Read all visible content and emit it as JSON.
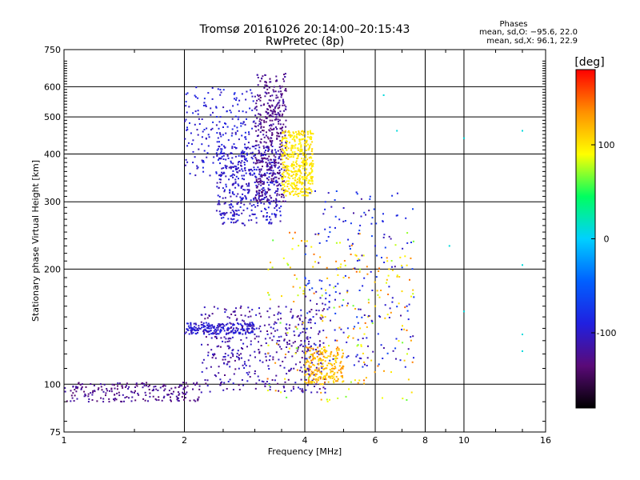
{
  "chart_data": {
    "type": "scatter",
    "title": "Tromsø 20161026 20:14:00–20:15:43",
    "subtitle": "RwPretec (8p)",
    "xlabel": "Frequency [MHz]",
    "ylabel": "Stationary phase Virtual Height [km]",
    "x_scale": "log",
    "y_scale": "log",
    "xlim": [
      1,
      16
    ],
    "ylim": [
      75,
      750
    ],
    "grid": true,
    "x_ticks": [
      1,
      2,
      4,
      6,
      8,
      10,
      16
    ],
    "x_tick_labels": [
      "1",
      "2",
      "4",
      "6",
      "8",
      "10",
      "16"
    ],
    "x_gridlines": [
      2,
      4,
      6,
      8,
      10
    ],
    "y_ticks": [
      75,
      100,
      200,
      300,
      400,
      500,
      600,
      750
    ],
    "y_tick_labels": [
      "75",
      "100",
      "200",
      "300",
      "400",
      "500",
      "600",
      "750"
    ],
    "y_gridlines": [
      100,
      200,
      300,
      400,
      500,
      600
    ],
    "colorbar": {
      "label": "[deg]",
      "range": [
        -180,
        180
      ],
      "ticks": [
        -100,
        0,
        100
      ],
      "tick_labels": [
        "-100",
        "0",
        "100"
      ],
      "colors": [
        "#000000",
        "#5a0a78",
        "#2020e0",
        "#0060ff",
        "#00d0ff",
        "#00ff60",
        "#ffff00",
        "#ff9000",
        "#ff0000"
      ]
    },
    "legend": {
      "title": "Phases",
      "lines": [
        "mean, sd,O: −95.6, 22.0",
        "mean, sd,X:  96.1, 22.9"
      ]
    },
    "series": [
      {
        "x_range": [
          1.0,
          2.2
        ],
        "y_range": [
          90,
          101
        ],
        "phase_range": [
          -140,
          -110
        ],
        "density": "medium",
        "points": [
          [
            1.05,
            92
          ],
          [
            1.15,
            93
          ],
          [
            1.3,
            96
          ],
          [
            1.5,
            95
          ],
          [
            1.7,
            97
          ],
          [
            1.9,
            98
          ],
          [
            2.1,
            97
          ]
        ]
      },
      {
        "x_range": [
          2.0,
          3.0
        ],
        "y_range": [
          135,
          145
        ],
        "phase_range": [
          -110,
          -85
        ],
        "density": "medium",
        "points": [
          [
            2.1,
            139
          ],
          [
            2.3,
            140
          ],
          [
            2.5,
            141
          ],
          [
            2.7,
            140
          ],
          [
            2.9,
            142
          ]
        ]
      },
      {
        "x_range": [
          2.2,
          4.5
        ],
        "y_range": [
          95,
          160
        ],
        "phase_range": [
          -135,
          -95
        ],
        "density": "high",
        "points": [
          [
            2.4,
            105
          ],
          [
            2.8,
            112
          ],
          [
            3.2,
            118
          ],
          [
            3.6,
            125
          ],
          [
            4.0,
            130
          ],
          [
            4.4,
            120
          ]
        ]
      },
      {
        "x_range": [
          2.0,
          3.0
        ],
        "y_range": [
          350,
          600
        ],
        "phase_range": [
          -110,
          -80
        ],
        "density": "medium",
        "points": [
          [
            2.1,
            380
          ],
          [
            2.3,
            420
          ],
          [
            2.5,
            470
          ],
          [
            2.6,
            520
          ],
          [
            2.7,
            560
          ],
          [
            2.8,
            480
          ]
        ]
      },
      {
        "x_range": [
          2.4,
          3.5
        ],
        "y_range": [
          260,
          420
        ],
        "phase_range": [
          -115,
          -85
        ],
        "density": "high",
        "points": [
          [
            2.5,
            280
          ],
          [
            2.7,
            310
          ],
          [
            2.9,
            330
          ],
          [
            3.1,
            350
          ],
          [
            3.3,
            380
          ],
          [
            3.4,
            400
          ]
        ]
      },
      {
        "x_range": [
          3.0,
          3.6
        ],
        "y_range": [
          300,
          650
        ],
        "phase_range": [
          -140,
          -110
        ],
        "density": "high",
        "points": [
          [
            3.1,
            340
          ],
          [
            3.2,
            380
          ],
          [
            3.3,
            440
          ],
          [
            3.4,
            500
          ],
          [
            3.5,
            570
          ],
          [
            3.55,
            620
          ]
        ]
      },
      {
        "x_range": [
          3.5,
          4.2
        ],
        "y_range": [
          310,
          460
        ],
        "phase_range": [
          90,
          110
        ],
        "density": "high",
        "points": [
          [
            3.6,
            320
          ],
          [
            3.7,
            350
          ],
          [
            3.8,
            380
          ],
          [
            3.9,
            410
          ],
          [
            4.0,
            440
          ]
        ]
      },
      {
        "x_range": [
          3.2,
          7.5
        ],
        "y_range": [
          90,
          250
        ],
        "phase_range": [
          60,
          150
        ],
        "density": "medium",
        "points": [
          [
            3.5,
            170
          ],
          [
            4.0,
            180
          ],
          [
            4.5,
            150
          ],
          [
            5.0,
            190
          ],
          [
            5.5,
            140
          ],
          [
            6.0,
            160
          ],
          [
            6.5,
            200
          ],
          [
            7.0,
            175
          ]
        ]
      },
      {
        "x_range": [
          4.0,
          7.5
        ],
        "y_range": [
          110,
          320
        ],
        "phase_range": [
          -120,
          -60
        ],
        "density": "medium",
        "points": [
          [
            4.2,
            150
          ],
          [
            4.8,
            200
          ],
          [
            5.5,
            260
          ],
          [
            6.0,
            230
          ],
          [
            6.5,
            180
          ],
          [
            7.2,
            160
          ]
        ]
      },
      {
        "x_range": [
          4.0,
          5.0
        ],
        "y_range": [
          100,
          125
        ],
        "phase_range": [
          100,
          140
        ],
        "density": "medium",
        "points": [
          [
            4.1,
            112
          ],
          [
            4.3,
            108
          ],
          [
            4.5,
            115
          ],
          [
            4.7,
            110
          ]
        ]
      },
      {
        "x_range": [
          5.5,
          15.0
        ],
        "y_range": [
          120,
          580
        ],
        "phase_range": [
          -120,
          140
        ],
        "density": "sparse",
        "points": [
          [
            6.3,
            570
          ],
          [
            6.8,
            460
          ],
          [
            9.2,
            230
          ],
          [
            10.0,
            440
          ],
          [
            10.0,
            155
          ],
          [
            14.0,
            460
          ],
          [
            14.0,
            205
          ],
          [
            14.0,
            135
          ],
          [
            14.0,
            122
          ]
        ]
      }
    ]
  }
}
